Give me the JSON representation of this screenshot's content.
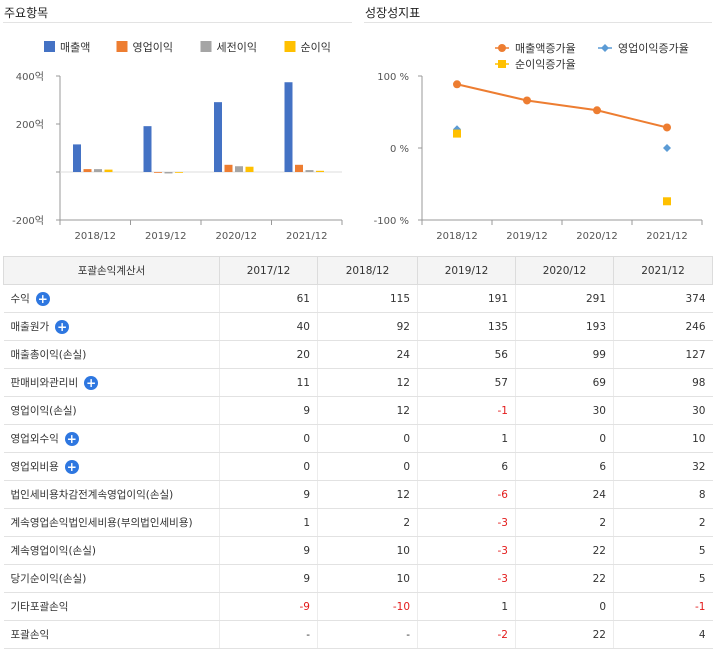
{
  "panels": {
    "left_title": "주요항목",
    "right_title": "성장성지표"
  },
  "icons": {
    "expand": "plus-circle-icon"
  },
  "chart_data": [
    {
      "type": "bar",
      "categories": [
        "2018/12",
        "2019/12",
        "2020/12",
        "2021/12"
      ],
      "series": [
        {
          "name": "매출액",
          "color": "#4472c4",
          "values": [
            115,
            191,
            291,
            374
          ]
        },
        {
          "name": "영업이익",
          "color": "#ed7d31",
          "values": [
            12,
            -1,
            30,
            30
          ]
        },
        {
          "name": "세전이익",
          "color": "#a5a5a5",
          "values": [
            12,
            -6,
            24,
            8
          ]
        },
        {
          "name": "순이익",
          "color": "#ffc000",
          "values": [
            10,
            -3,
            22,
            5
          ]
        }
      ],
      "ylim": [
        -200,
        400
      ],
      "yticks": [
        "400억",
        "200억",
        "",
        "-200억"
      ],
      "ytick_values": [
        400,
        200,
        0,
        -200
      ],
      "legend": "top"
    },
    {
      "type": "line",
      "categories": [
        "2018/12",
        "2019/12",
        "2020/12",
        "2021/12"
      ],
      "series": [
        {
          "name": "매출액증가율",
          "color": "#ed7d31",
          "marker": "circle",
          "style": "line",
          "values": [
            88.5,
            66,
            52.4,
            28.5
          ]
        },
        {
          "name": "영업이익증가율",
          "color": "#5b9bd5",
          "marker": "diamond",
          "style": "points",
          "values": [
            26,
            null,
            null,
            0
          ]
        },
        {
          "name": "순이익증가율",
          "color": "#ffc000",
          "marker": "square",
          "style": "points",
          "values": [
            20,
            null,
            null,
            -74
          ]
        }
      ],
      "ylim": [
        -100,
        100
      ],
      "yticks": [
        "100 %",
        "0 %",
        "-100 %"
      ],
      "ytick_values": [
        100,
        0,
        -100
      ],
      "legend": "top"
    }
  ],
  "table": {
    "headers": [
      "포괄손익계산서",
      "2017/12",
      "2018/12",
      "2019/12",
      "2020/12",
      "2021/12"
    ],
    "rows": [
      {
        "label": "수익",
        "expand": true,
        "values": [
          "61",
          "115",
          "191",
          "291",
          "374"
        ]
      },
      {
        "label": "매출원가",
        "expand": true,
        "values": [
          "40",
          "92",
          "135",
          "193",
          "246"
        ]
      },
      {
        "label": "매출총이익(손실)",
        "expand": false,
        "values": [
          "20",
          "24",
          "56",
          "99",
          "127"
        ]
      },
      {
        "label": "판매비와관리비",
        "expand": true,
        "values": [
          "11",
          "12",
          "57",
          "69",
          "98"
        ]
      },
      {
        "label": "영업이익(손실)",
        "expand": false,
        "values": [
          "9",
          "12",
          "-1",
          "30",
          "30"
        ]
      },
      {
        "label": "영업외수익",
        "expand": true,
        "values": [
          "0",
          "0",
          "1",
          "0",
          "10"
        ]
      },
      {
        "label": "영업외비용",
        "expand": true,
        "values": [
          "0",
          "0",
          "6",
          "6",
          "32"
        ]
      },
      {
        "label": "법인세비용차감전계속영업이익(손실)",
        "expand": false,
        "values": [
          "9",
          "12",
          "-6",
          "24",
          "8"
        ]
      },
      {
        "label": "계속영업손익법인세비용(부의법인세비용)",
        "expand": false,
        "values": [
          "1",
          "2",
          "-3",
          "2",
          "2"
        ]
      },
      {
        "label": "계속영업이익(손실)",
        "expand": false,
        "values": [
          "9",
          "10",
          "-3",
          "22",
          "5"
        ]
      },
      {
        "label": "당기순이익(손실)",
        "expand": false,
        "values": [
          "9",
          "10",
          "-3",
          "22",
          "5"
        ]
      },
      {
        "label": "기타포괄손익",
        "expand": false,
        "values": [
          "-9",
          "-10",
          "1",
          "0",
          "-1"
        ]
      },
      {
        "label": "포괄손익",
        "expand": false,
        "values": [
          "-",
          "-",
          "-2",
          "22",
          "4"
        ]
      }
    ]
  }
}
